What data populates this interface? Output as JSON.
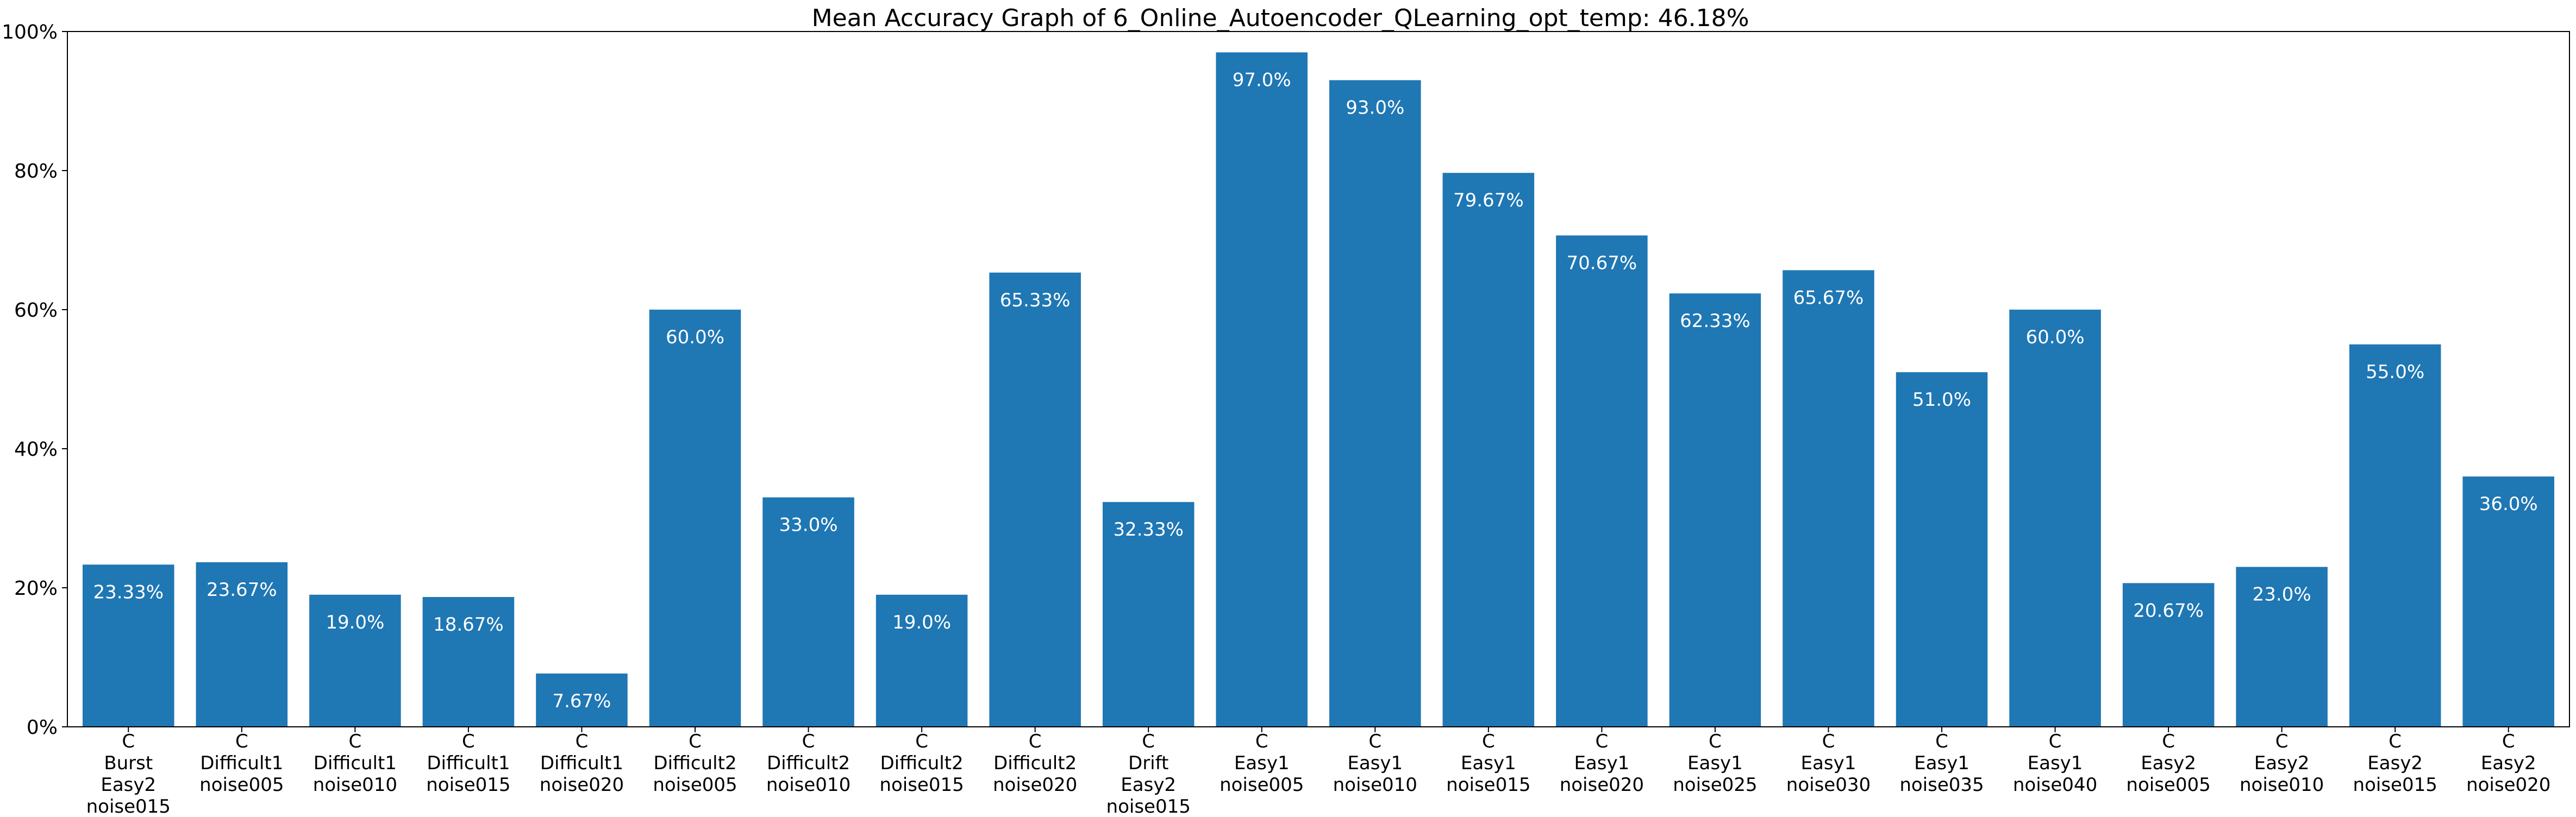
{
  "chart_data": {
    "type": "bar",
    "title": "Mean Accuracy Graph of 6_Online_Autoencoder_QLearning_opt_temp: 46.18%",
    "xlabel": "",
    "ylabel": "",
    "ylim": [
      0,
      100
    ],
    "yticks": [
      0,
      20,
      40,
      60,
      80,
      100
    ],
    "ytick_labels": [
      "0%",
      "20%",
      "40%",
      "60%",
      "80%",
      "100%"
    ],
    "grid": false,
    "bar_color": "#1f77b4",
    "categories": [
      [
        "C",
        "Burst",
        "Easy2",
        "noise015"
      ],
      [
        "C",
        "Difficult1",
        "noise005"
      ],
      [
        "C",
        "Difficult1",
        "noise010"
      ],
      [
        "C",
        "Difficult1",
        "noise015"
      ],
      [
        "C",
        "Difficult1",
        "noise020"
      ],
      [
        "C",
        "Difficult2",
        "noise005"
      ],
      [
        "C",
        "Difficult2",
        "noise010"
      ],
      [
        "C",
        "Difficult2",
        "noise015"
      ],
      [
        "C",
        "Difficult2",
        "noise020"
      ],
      [
        "C",
        "Drift",
        "Easy2",
        "noise015"
      ],
      [
        "C",
        "Easy1",
        "noise005"
      ],
      [
        "C",
        "Easy1",
        "noise010"
      ],
      [
        "C",
        "Easy1",
        "noise015"
      ],
      [
        "C",
        "Easy1",
        "noise020"
      ],
      [
        "C",
        "Easy1",
        "noise025"
      ],
      [
        "C",
        "Easy1",
        "noise030"
      ],
      [
        "C",
        "Easy1",
        "noise035"
      ],
      [
        "C",
        "Easy1",
        "noise040"
      ],
      [
        "C",
        "Easy2",
        "noise005"
      ],
      [
        "C",
        "Easy2",
        "noise010"
      ],
      [
        "C",
        "Easy2",
        "noise015"
      ],
      [
        "C",
        "Easy2",
        "noise020"
      ]
    ],
    "values": [
      23.33,
      23.67,
      19.0,
      18.67,
      7.67,
      60.0,
      33.0,
      19.0,
      65.33,
      32.33,
      97.0,
      93.0,
      79.67,
      70.67,
      62.33,
      65.67,
      51.0,
      60.0,
      20.67,
      23.0,
      55.0,
      36.0
    ],
    "value_labels": [
      "23.33%",
      "23.67%",
      "19.0%",
      "18.67%",
      "7.67%",
      "60.0%",
      "33.0%",
      "19.0%",
      "65.33%",
      "32.33%",
      "97.0%",
      "93.0%",
      "79.67%",
      "70.67%",
      "62.33%",
      "65.67%",
      "51.0%",
      "60.0%",
      "20.67%",
      "23.0%",
      "55.0%",
      "36.0%"
    ]
  }
}
